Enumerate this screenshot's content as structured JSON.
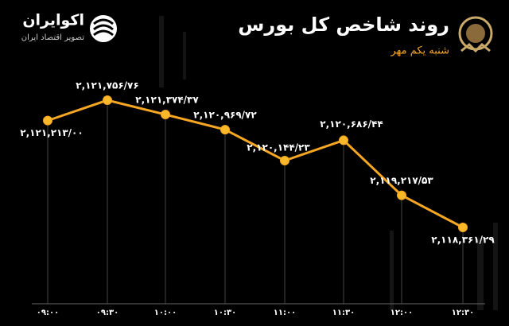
{
  "logo": {
    "name": "اکوایران",
    "tagline": "تصویر اقتصاد ایران"
  },
  "chart_data": {
    "type": "line",
    "title": "روند شاخص کل بورس",
    "subtitle": "شنبه یکم مهر",
    "categories": [
      "۰۹:۰۰",
      "۰۹:۳۰",
      "۱۰:۰۰",
      "۱۰:۳۰",
      "۱۱:۰۰",
      "۱۱:۳۰",
      "۱۲:۰۰",
      "۱۲:۳۰"
    ],
    "values": [
      2121213.0,
      2121756.76,
      2121374.37,
      2120969.72,
      2120144.23,
      2120686.44,
      2119217.53,
      2118361.29
    ],
    "value_labels": [
      "۲,۱۲۱,۲۱۳/۰۰",
      "۲,۱۲۱,۷۵۶/۷۶",
      "۲,۱۲۱,۳۷۴/۳۷",
      "۲,۱۲۰,۹۶۹/۷۲",
      "۲,۱۲۰,۱۴۴/۲۳",
      "۲,۱۲۰,۶۸۶/۴۴",
      "۲,۱۱۹,۲۱۷/۵۳",
      "۲,۱۱۸,۳۶۱/۲۹"
    ],
    "color": "#f5a623"
  }
}
